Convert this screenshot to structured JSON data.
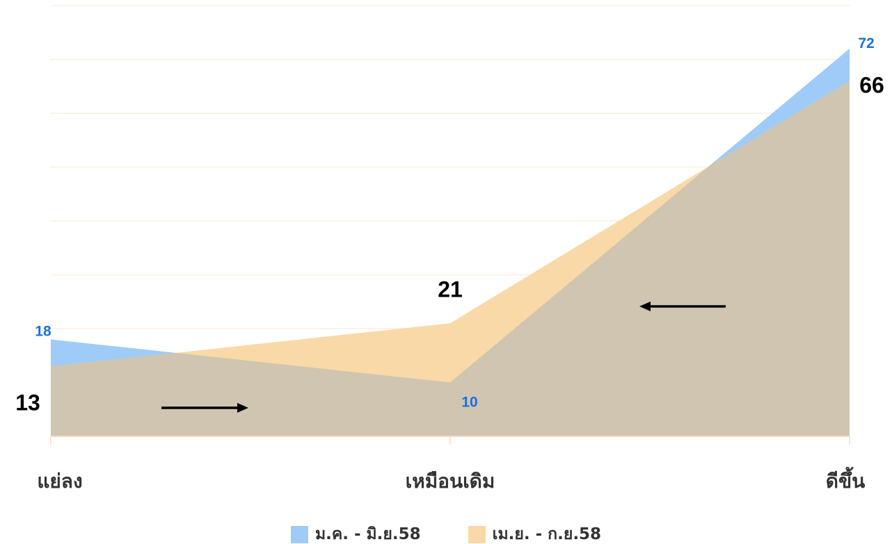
{
  "chart_data": {
    "type": "area",
    "categories": [
      "แย่ลง",
      "เหมือนเดิม",
      "ดีขึ้น"
    ],
    "series": [
      {
        "name": "ม.ค. - มิ.ย.58",
        "values": [
          18,
          10,
          72
        ],
        "color": "#9fcbf8",
        "label_color": "#1a6fe0"
      },
      {
        "name": "เม.ย. - ก.ย.58",
        "values": [
          13,
          21,
          66
        ],
        "color": "#f9d9a8",
        "label_color": "#000000"
      }
    ],
    "overlap_color": "#cfc5b0",
    "gridline_color": "#fdeedd",
    "axis_color": "#f5dbc2",
    "ylim": [
      0,
      80
    ],
    "grid": true,
    "y_tick_labels_shown": false,
    "legend_position": "bottom"
  }
}
